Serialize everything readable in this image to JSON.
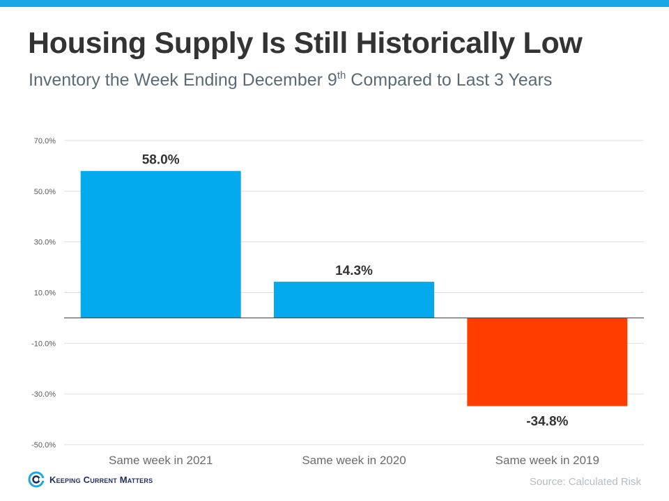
{
  "title": "Housing Supply Is Still Historically Low",
  "subtitle": {
    "prefix": "Inventory the Week Ending December 9",
    "superscript": "th",
    "suffix": " Compared to Last 3 Years"
  },
  "logo": {
    "text": "Keeping Current Matters",
    "icon": "kcm-logo-icon"
  },
  "source": "Source: Calculated Risk",
  "colors": {
    "positive": "#03aaee",
    "negative": "#ff3d00",
    "accent": "#1aa7e8"
  },
  "chart_data": {
    "type": "bar",
    "categories": [
      "Same week in 2021",
      "Same week in 2020",
      "Same week in 2019"
    ],
    "values": [
      58.0,
      14.3,
      -34.8
    ],
    "data_labels": [
      "58.0%",
      "14.3%",
      "-34.8%"
    ],
    "yticks": [
      70,
      50,
      30,
      10,
      -10,
      -30,
      -50
    ],
    "ytick_labels": [
      "70.0%",
      "50.0%",
      "30.0%",
      "10.0%",
      "-10.0%",
      "-30.0%",
      "-50.0%"
    ],
    "ylim": [
      -50,
      70
    ],
    "grid": true,
    "legend": "none"
  }
}
